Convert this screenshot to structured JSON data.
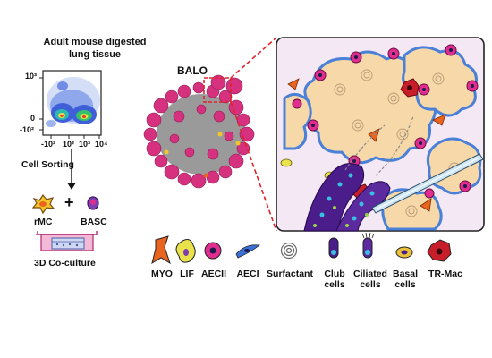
{
  "flow": {
    "title": "Adult mouse digested lung tissue",
    "y_ticks": [
      "10³",
      "0",
      "-10²"
    ],
    "x_ticks": [
      "-10²",
      "10²",
      "10³",
      "10⁴"
    ],
    "sorting_label": "Cell Sorting",
    "plus": "+",
    "cell_a": "rMC",
    "cell_b": "BASC",
    "coculture_label": "3D Co-culture"
  },
  "organoid": {
    "label": "BALO"
  },
  "legend": {
    "items": [
      {
        "label": "MYO",
        "icon": "myofibroblast-icon"
      },
      {
        "label": "LIF",
        "icon": "lipofibroblast-icon"
      },
      {
        "label": "AECII",
        "icon": "aecii-cell-icon"
      },
      {
        "label": "AECI",
        "icon": "aeci-cell-icon"
      },
      {
        "label": "Surfactant",
        "icon": "surfactant-icon"
      },
      {
        "label": "Club cells",
        "icon": "club-cell-icon"
      },
      {
        "label": "Ciliated cells",
        "icon": "ciliated-cell-icon"
      },
      {
        "label": "Basal cells",
        "icon": "basal-cell-icon"
      },
      {
        "label": "TR-Mac",
        "icon": "tr-mac-icon"
      }
    ]
  },
  "colors": {
    "organoid_pink": "#d6317e",
    "myo_orange": "#e8641f",
    "lif_yellow": "#e9e24a",
    "aecii_magenta": "#e02d8f",
    "aeci_blue": "#3b6fd6",
    "club_purple": "#4a1d8a",
    "alveolus_fill": "#f7d8a8",
    "tr_mac_red": "#c81e2a",
    "zoom_dash": "#e0232a"
  }
}
